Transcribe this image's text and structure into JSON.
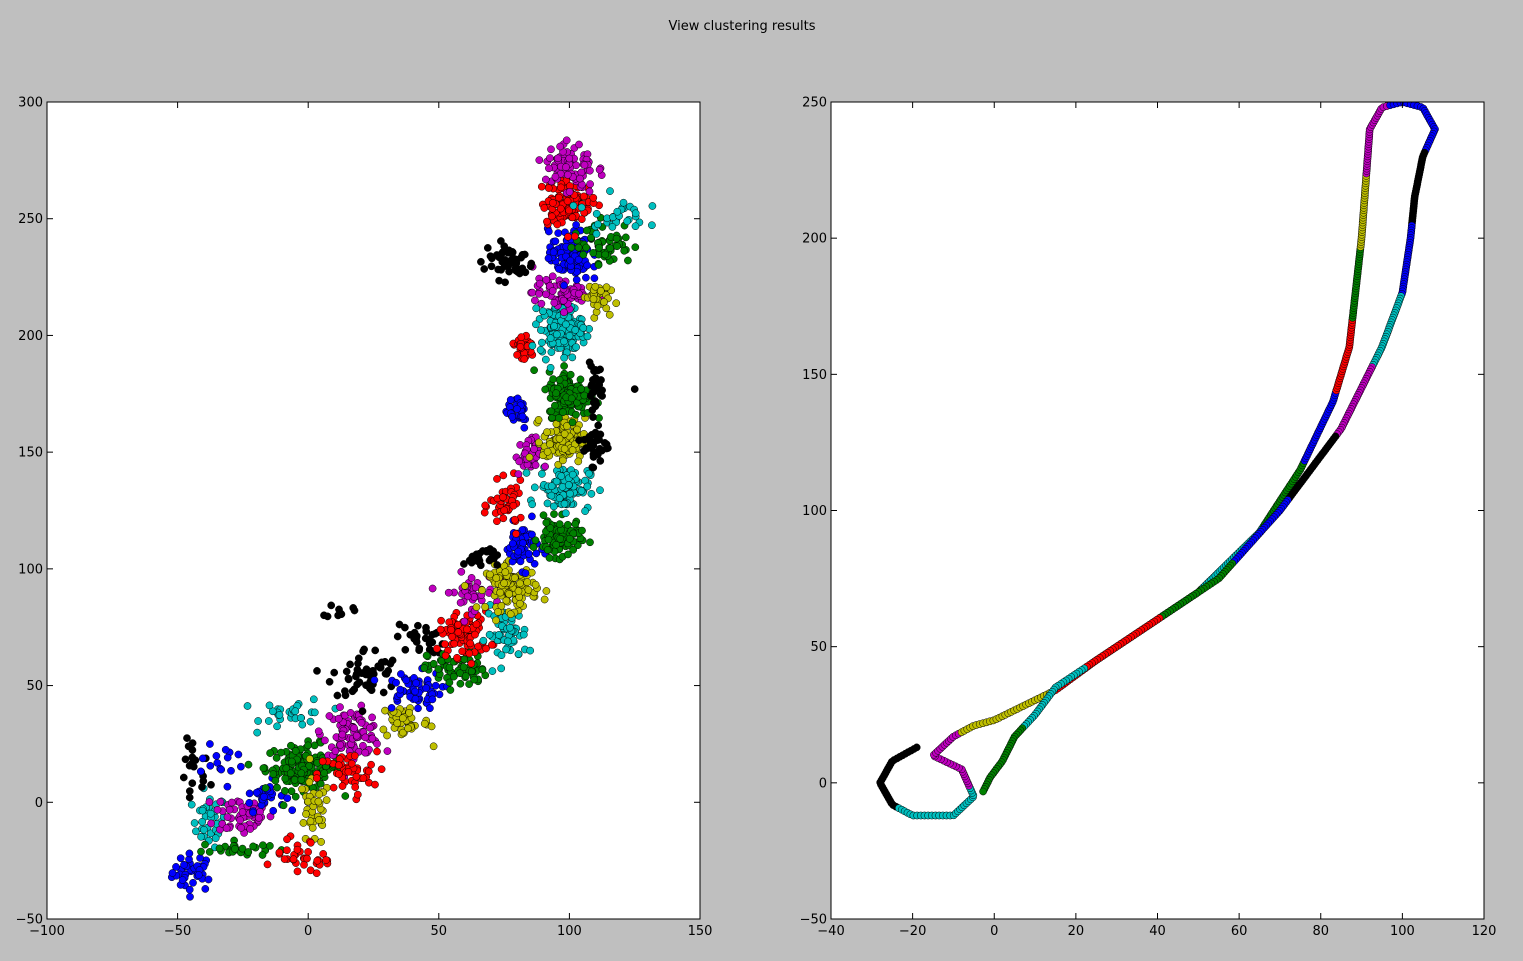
{
  "figure": {
    "title": "View clustering results",
    "background": "#bfbfbf"
  },
  "palette": {
    "b": "#0000ff",
    "g": "#008000",
    "r": "#ff0000",
    "c": "#00bfbf",
    "m": "#bf00bf",
    "y": "#bfbf00",
    "k": "#000000"
  },
  "chart_data": [
    {
      "type": "scatter",
      "title": "",
      "xlabel": "",
      "ylabel": "",
      "xlim": [
        -100,
        150
      ],
      "ylim": [
        -50,
        300
      ],
      "xticks": [
        -100,
        -50,
        0,
        50,
        100,
        150
      ],
      "yticks": [
        -50,
        0,
        50,
        100,
        150,
        200,
        250,
        300
      ],
      "xtick_labels": [
        "−100",
        "−50",
        "0",
        "50",
        "100",
        "150"
      ],
      "ytick_labels": [
        "−50",
        "0",
        "50",
        "100",
        "150",
        "200",
        "250",
        "300"
      ],
      "grid": false,
      "marker": "circle",
      "clusters": [
        {
          "color": "b",
          "center": [
            -44,
            -30
          ],
          "spread": [
            5,
            5
          ],
          "count": 40
        },
        {
          "color": "c",
          "center": [
            -38,
            -8
          ],
          "spread": [
            4,
            7
          ],
          "count": 35
        },
        {
          "color": "k",
          "center": [
            -44,
            12
          ],
          "spread": [
            4,
            10
          ],
          "count": 20
        },
        {
          "color": "b",
          "center": [
            -32,
            18
          ],
          "spread": [
            6,
            4
          ],
          "count": 14
        },
        {
          "color": "m",
          "center": [
            -25,
            -5
          ],
          "spread": [
            7,
            6
          ],
          "count": 60
        },
        {
          "color": "b",
          "center": [
            -17,
            3
          ],
          "spread": [
            5,
            4
          ],
          "count": 30
        },
        {
          "color": "g",
          "center": [
            -28,
            -20
          ],
          "spread": [
            8,
            2
          ],
          "count": 26
        },
        {
          "color": "g",
          "center": [
            -2,
            15
          ],
          "spread": [
            9,
            6
          ],
          "count": 140
        },
        {
          "color": "y",
          "center": [
            2,
            -5
          ],
          "spread": [
            4,
            9
          ],
          "count": 40
        },
        {
          "color": "r",
          "center": [
            -5,
            -23
          ],
          "spread": [
            5,
            5
          ],
          "count": 25
        },
        {
          "color": "r",
          "center": [
            5,
            -28
          ],
          "spread": [
            3,
            3
          ],
          "count": 10
        },
        {
          "color": "c",
          "center": [
            -5,
            38
          ],
          "spread": [
            8,
            4
          ],
          "count": 30
        },
        {
          "color": "m",
          "center": [
            17,
            30
          ],
          "spread": [
            7,
            6
          ],
          "count": 90
        },
        {
          "color": "r",
          "center": [
            15,
            12
          ],
          "spread": [
            7,
            6
          ],
          "count": 45
        },
        {
          "color": "y",
          "center": [
            37,
            35
          ],
          "spread": [
            6,
            5
          ],
          "count": 50
        },
        {
          "color": "k",
          "center": [
            22,
            55
          ],
          "spread": [
            8,
            7
          ],
          "count": 50
        },
        {
          "color": "k",
          "center": [
            12,
            82
          ],
          "spread": [
            3,
            2
          ],
          "count": 10
        },
        {
          "color": "b",
          "center": [
            40,
            48
          ],
          "spread": [
            7,
            5
          ],
          "count": 60
        },
        {
          "color": "k",
          "center": [
            43,
            70
          ],
          "spread": [
            6,
            4
          ],
          "count": 30
        },
        {
          "color": "g",
          "center": [
            57,
            57
          ],
          "spread": [
            7,
            5
          ],
          "count": 70
        },
        {
          "color": "r",
          "center": [
            60,
            72
          ],
          "spread": [
            6,
            6
          ],
          "count": 90
        },
        {
          "color": "m",
          "center": [
            62,
            90
          ],
          "spread": [
            6,
            5
          ],
          "count": 40
        },
        {
          "color": "c",
          "center": [
            76,
            72
          ],
          "spread": [
            5,
            7
          ],
          "count": 55
        },
        {
          "color": "y",
          "center": [
            78,
            92
          ],
          "spread": [
            6,
            6
          ],
          "count": 110
        },
        {
          "color": "k",
          "center": [
            66,
            105
          ],
          "spread": [
            4,
            3
          ],
          "count": 25
        },
        {
          "color": "b",
          "center": [
            82,
            110
          ],
          "spread": [
            4,
            6
          ],
          "count": 60
        },
        {
          "color": "r",
          "center": [
            76,
            127
          ],
          "spread": [
            4,
            6
          ],
          "count": 45
        },
        {
          "color": "g",
          "center": [
            96,
            113
          ],
          "spread": [
            5,
            5
          ],
          "count": 100
        },
        {
          "color": "c",
          "center": [
            98,
            135
          ],
          "spread": [
            6,
            6
          ],
          "count": 110
        },
        {
          "color": "m",
          "center": [
            84,
            148
          ],
          "spread": [
            3,
            5
          ],
          "count": 35
        },
        {
          "color": "y",
          "center": [
            98,
            155
          ],
          "spread": [
            5,
            6
          ],
          "count": 110
        },
        {
          "color": "k",
          "center": [
            110,
            153
          ],
          "spread": [
            3,
            5
          ],
          "count": 35
        },
        {
          "color": "b",
          "center": [
            80,
            168
          ],
          "spread": [
            3,
            5
          ],
          "count": 30
        },
        {
          "color": "g",
          "center": [
            100,
            175
          ],
          "spread": [
            5,
            6
          ],
          "count": 160
        },
        {
          "color": "k",
          "center": [
            110,
            178
          ],
          "spread": [
            2,
            6
          ],
          "count": 30
        },
        {
          "color": "r",
          "center": [
            82,
            195
          ],
          "spread": [
            3,
            4
          ],
          "count": 30
        },
        {
          "color": "c",
          "center": [
            97,
            203
          ],
          "spread": [
            5,
            7
          ],
          "count": 160
        },
        {
          "color": "m",
          "center": [
            97,
            218
          ],
          "spread": [
            7,
            4
          ],
          "count": 70
        },
        {
          "color": "y",
          "center": [
            110,
            217
          ],
          "spread": [
            3,
            4
          ],
          "count": 40
        },
        {
          "color": "k",
          "center": [
            77,
            232
          ],
          "spread": [
            6,
            5
          ],
          "count": 50
        },
        {
          "color": "b",
          "center": [
            100,
            234
          ],
          "spread": [
            5,
            7
          ],
          "count": 110
        },
        {
          "color": "g",
          "center": [
            113,
            240
          ],
          "spread": [
            7,
            6
          ],
          "count": 60
        },
        {
          "color": "r",
          "center": [
            99,
            257
          ],
          "spread": [
            6,
            6
          ],
          "count": 120
        },
        {
          "color": "c",
          "center": [
            118,
            252
          ],
          "spread": [
            7,
            5
          ],
          "count": 30
        },
        {
          "color": "m",
          "center": [
            100,
            272
          ],
          "spread": [
            6,
            7
          ],
          "count": 80
        }
      ],
      "outliers": [
        {
          "color": "k",
          "x": 125,
          "y": 177
        },
        {
          "color": "y",
          "x": 48,
          "y": 24
        },
        {
          "color": "c",
          "x": 85,
          "y": 65
        }
      ]
    },
    {
      "type": "scatter",
      "title": "",
      "xlabel": "",
      "ylabel": "",
      "xlim": [
        -40,
        120
      ],
      "ylim": [
        -50,
        250
      ],
      "xticks": [
        -40,
        -20,
        0,
        20,
        40,
        60,
        80,
        100,
        120
      ],
      "yticks": [
        -50,
        0,
        50,
        100,
        150,
        200,
        250
      ],
      "xtick_labels": [
        "−40",
        "−20",
        "0",
        "20",
        "40",
        "60",
        "80",
        "100",
        "120"
      ],
      "ytick_labels": [
        "−50",
        "0",
        "50",
        "100",
        "150",
        "200",
        "250"
      ],
      "grid": false,
      "marker": "circle",
      "paths": [
        {
          "name": "",
          "spacing": 0.9,
          "colors": [
            "k",
            "c",
            "m",
            "y",
            "r",
            "g",
            "c",
            "g",
            "b",
            "r",
            "g",
            "y",
            "m",
            "b",
            "k",
            "b",
            "c",
            "m",
            "k",
            "b",
            "g",
            "r",
            "c",
            "g"
          ],
          "points": [
            [
              -19,
              13
            ],
            [
              -25,
              8
            ],
            [
              -28,
              0
            ],
            [
              -25,
              -8
            ],
            [
              -20,
              -12
            ],
            [
              -10,
              -12
            ],
            [
              -5,
              -5
            ],
            [
              -8,
              5
            ],
            [
              -15,
              10
            ],
            [
              -10,
              17
            ],
            [
              -5,
              21
            ],
            [
              0,
              23
            ],
            [
              15,
              34
            ],
            [
              25,
              45
            ],
            [
              35,
              55
            ],
            [
              50,
              70
            ],
            [
              65,
              92
            ],
            [
              75,
              115
            ],
            [
              83,
              140
            ],
            [
              87,
              160
            ],
            [
              90,
              200
            ],
            [
              92,
              240
            ],
            [
              95,
              248
            ],
            [
              100,
              250
            ],
            [
              105,
              248
            ],
            [
              108,
              240
            ],
            [
              105,
              230
            ],
            [
              103,
              215
            ],
            [
              102,
              200
            ],
            [
              100,
              180
            ],
            [
              95,
              160
            ],
            [
              85,
              130
            ],
            [
              70,
              100
            ],
            [
              55,
              75
            ],
            [
              45,
              65
            ],
            [
              35,
              55
            ],
            [
              25,
              45
            ],
            [
              15,
              35
            ],
            [
              10,
              25
            ],
            [
              5,
              17
            ],
            [
              2,
              8
            ],
            [
              -1,
              2
            ],
            [
              -3,
              -4
            ]
          ]
        }
      ]
    }
  ]
}
